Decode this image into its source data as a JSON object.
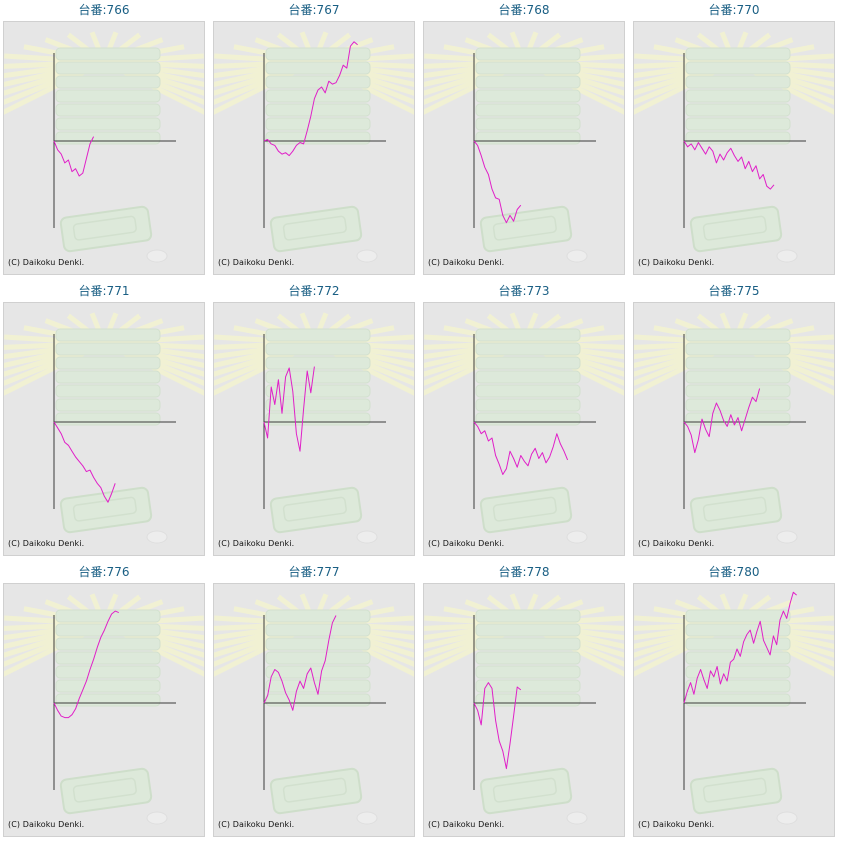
{
  "credit": "(C) Daikoku Denki.",
  "colors": {
    "line": "#e020c8",
    "axis": "#3a3a3a",
    "title": "#1a5f84",
    "panel_bg": "#e6e6e6"
  },
  "chart_data": [
    {
      "type": "line",
      "title": "台番:766",
      "values": [
        0,
        -600,
        -900,
        -1500,
        -1300,
        -2100,
        -1900,
        -2400,
        -2200,
        -1200,
        -200,
        300
      ]
    },
    {
      "type": "line",
      "title": "台番:767",
      "values": [
        0,
        100,
        -200,
        -300,
        -700,
        -900,
        -800,
        -1000,
        -700,
        -300,
        -100,
        -200,
        700,
        1700,
        2900,
        3500,
        3700,
        3300,
        4100,
        3900,
        4000,
        4500,
        5200,
        5000,
        6500,
        6800,
        6600
      ]
    },
    {
      "type": "line",
      "title": "台番:768",
      "values": [
        0,
        -300,
        -1000,
        -1800,
        -2300,
        -3300,
        -3900,
        -4000,
        -5100,
        -5600,
        -5100,
        -5500,
        -4700,
        -4400
      ]
    },
    {
      "type": "line",
      "title": "台番:770",
      "values": [
        0,
        -400,
        -200,
        -600,
        -100,
        -500,
        -900,
        -400,
        -700,
        -1500,
        -900,
        -1300,
        -800,
        -500,
        -1000,
        -1400,
        -1100,
        -1900,
        -1400,
        -2100,
        -1700,
        -2600,
        -2300,
        -3100,
        -3300,
        -3000
      ]
    },
    {
      "type": "line",
      "title": "台番:771",
      "values": [
        0,
        -400,
        -800,
        -1400,
        -1600,
        -2000,
        -2400,
        -2700,
        -3000,
        -3400,
        -3300,
        -3800,
        -4200,
        -4500,
        -5100,
        -5500,
        -4900,
        -4200
      ]
    },
    {
      "type": "line",
      "title": "台番:772",
      "values": [
        0,
        -1100,
        2400,
        1200,
        2900,
        600,
        3100,
        3700,
        2100,
        -800,
        -2000,
        900,
        3500,
        2000,
        3800
      ]
    },
    {
      "type": "line",
      "title": "台番:773",
      "values": [
        0,
        -300,
        -800,
        -600,
        -1300,
        -1100,
        -2300,
        -2900,
        -3600,
        -3200,
        -2000,
        -2500,
        -3100,
        -2300,
        -2700,
        -3000,
        -2200,
        -1800,
        -2500,
        -2100,
        -2800,
        -2400,
        -1700,
        -800,
        -1500,
        -2000,
        -2600
      ]
    },
    {
      "type": "line",
      "title": "台番:775",
      "values": [
        0,
        -300,
        -900,
        -2100,
        -1200,
        200,
        -500,
        -1000,
        600,
        1300,
        800,
        100,
        -300,
        500,
        -200,
        300,
        -600,
        200,
        1000,
        1700,
        1400,
        2300
      ]
    },
    {
      "type": "line",
      "title": "台番:776",
      "values": [
        0,
        -500,
        -900,
        -1000,
        -1000,
        -800,
        -400,
        300,
        900,
        1500,
        2300,
        3000,
        3800,
        4500,
        5000,
        5600,
        6100,
        6300,
        6200
      ]
    },
    {
      "type": "line",
      "title": "台番:777",
      "values": [
        0,
        500,
        1800,
        2300,
        2100,
        1500,
        700,
        200,
        -500,
        800,
        1500,
        1000,
        2000,
        2400,
        1400,
        600,
        2200,
        2900,
        4300,
        5500,
        6000
      ]
    },
    {
      "type": "line",
      "title": "台番:778",
      "values": [
        0,
        -500,
        -1500,
        1000,
        1400,
        1000,
        -1200,
        -2600,
        -3300,
        -4500,
        -2800,
        -900,
        1100,
        900
      ]
    },
    {
      "type": "line",
      "title": "台番:780",
      "values": [
        0,
        800,
        1400,
        600,
        1700,
        2300,
        1600,
        1000,
        2200,
        1800,
        2500,
        1300,
        2000,
        1500,
        2800,
        3000,
        3700,
        3200,
        4200,
        4700,
        5000,
        4100,
        4900,
        5600,
        4300,
        3800,
        3300,
        4600,
        4000,
        5700,
        6300,
        5800,
        6800,
        7600,
        7400
      ]
    }
  ]
}
